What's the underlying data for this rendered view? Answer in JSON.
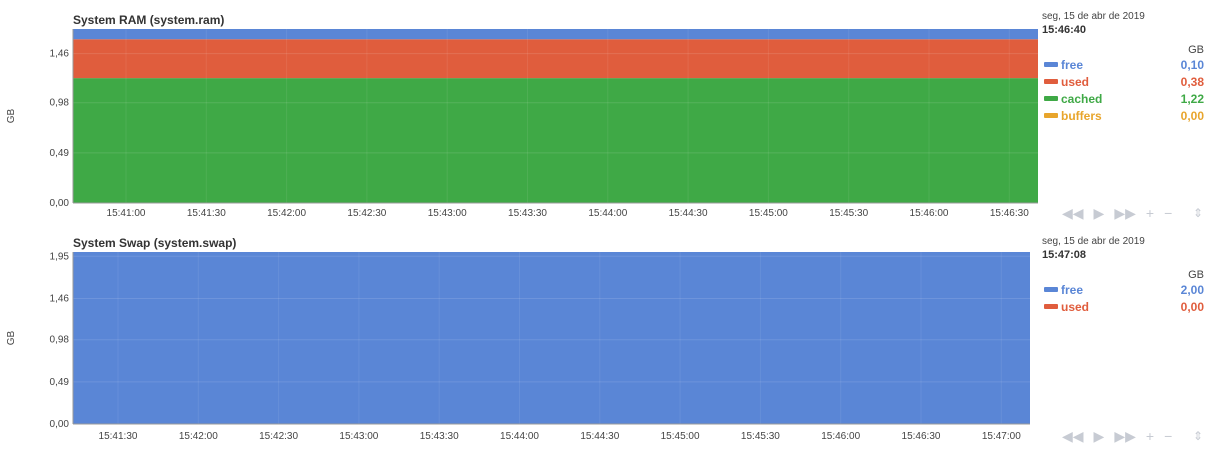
{
  "chart_data": [
    {
      "type": "area",
      "title": "System RAM (system.ram)",
      "ylabel": "GB",
      "ylim": [
        0,
        1.7
      ],
      "y_ticks": [
        "0,00",
        "0,49",
        "0,98",
        "1,46"
      ],
      "y_tick_values": [
        0,
        0.49,
        0.98,
        1.46
      ],
      "x_ticks": [
        "15:41:00",
        "15:41:30",
        "15:42:00",
        "15:42:30",
        "15:43:00",
        "15:43:30",
        "15:44:00",
        "15:44:30",
        "15:45:00",
        "15:45:30",
        "15:46:00",
        "15:46:30"
      ],
      "stacked": true,
      "series": [
        {
          "name": "cached",
          "color": "#3fa946",
          "value": 1.22
        },
        {
          "name": "used",
          "color": "#e05d3d",
          "value": 0.38
        },
        {
          "name": "free",
          "color": "#5a86d6",
          "value": 0.1
        },
        {
          "name": "buffers",
          "color": "#e8a52c",
          "value": 0.0
        }
      ],
      "grid": true
    },
    {
      "type": "area",
      "title": "System Swap (system.swap)",
      "ylabel": "GB",
      "ylim": [
        0,
        2.0
      ],
      "y_ticks": [
        "0,00",
        "0,49",
        "0,98",
        "1,46",
        "1,95"
      ],
      "y_tick_values": [
        0,
        0.49,
        0.98,
        1.46,
        1.95
      ],
      "x_ticks": [
        "15:41:30",
        "15:42:00",
        "15:42:30",
        "15:43:00",
        "15:43:30",
        "15:44:00",
        "15:44:30",
        "15:45:00",
        "15:45:30",
        "15:46:00",
        "15:46:30",
        "15:47:00"
      ],
      "stacked": true,
      "series": [
        {
          "name": "used",
          "color": "#e05d3d",
          "value": 0.0
        },
        {
          "name": "free",
          "color": "#5a86d6",
          "value": 2.0
        }
      ],
      "grid": true
    }
  ],
  "ram_legend": {
    "date": "seg, 15 de abr de 2019",
    "time": "15:46:40",
    "unit": "GB",
    "items": [
      {
        "name": "free",
        "value": "0,10",
        "color": "#5a86d6"
      },
      {
        "name": "used",
        "value": "0,38",
        "color": "#e05d3d"
      },
      {
        "name": "cached",
        "value": "1,22",
        "color": "#3fa946"
      },
      {
        "name": "buffers",
        "value": "0,00",
        "color": "#e8a52c"
      }
    ]
  },
  "swap_legend": {
    "date": "seg, 15 de abr de 2019",
    "time": "15:47:08",
    "unit": "GB",
    "items": [
      {
        "name": "free",
        "value": "2,00",
        "color": "#5a86d6"
      },
      {
        "name": "used",
        "value": "0,00",
        "color": "#e05d3d"
      }
    ]
  },
  "controls": {
    "rewind": "◀◀",
    "play": "▶",
    "fast_forward": "▶▶",
    "zoom_in": "+",
    "zoom_out": "−",
    "resize": "⇕"
  }
}
